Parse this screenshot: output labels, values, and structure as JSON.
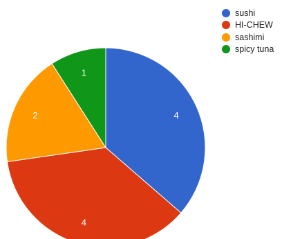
{
  "chart_data": {
    "type": "pie",
    "title": "",
    "categories": [
      "sushi",
      "HI-CHEW",
      "sashimi",
      "spicy tuna"
    ],
    "values": [
      4,
      4,
      2,
      1
    ],
    "colors": [
      "#3366cc",
      "#dc3912",
      "#ff9900",
      "#109618"
    ],
    "slice_labels": [
      "4",
      "4",
      "2",
      "1"
    ],
    "legend_position": "right"
  }
}
